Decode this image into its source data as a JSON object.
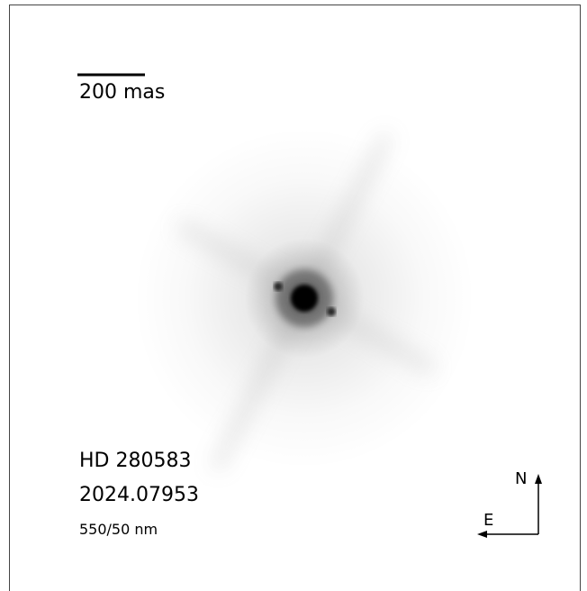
{
  "scale_bar": {
    "label": "200 mas"
  },
  "target": {
    "name": "HD 280583",
    "epoch": "2024.07953",
    "filter": "550/50 nm"
  },
  "compass": {
    "north": "N",
    "east": "E"
  }
}
